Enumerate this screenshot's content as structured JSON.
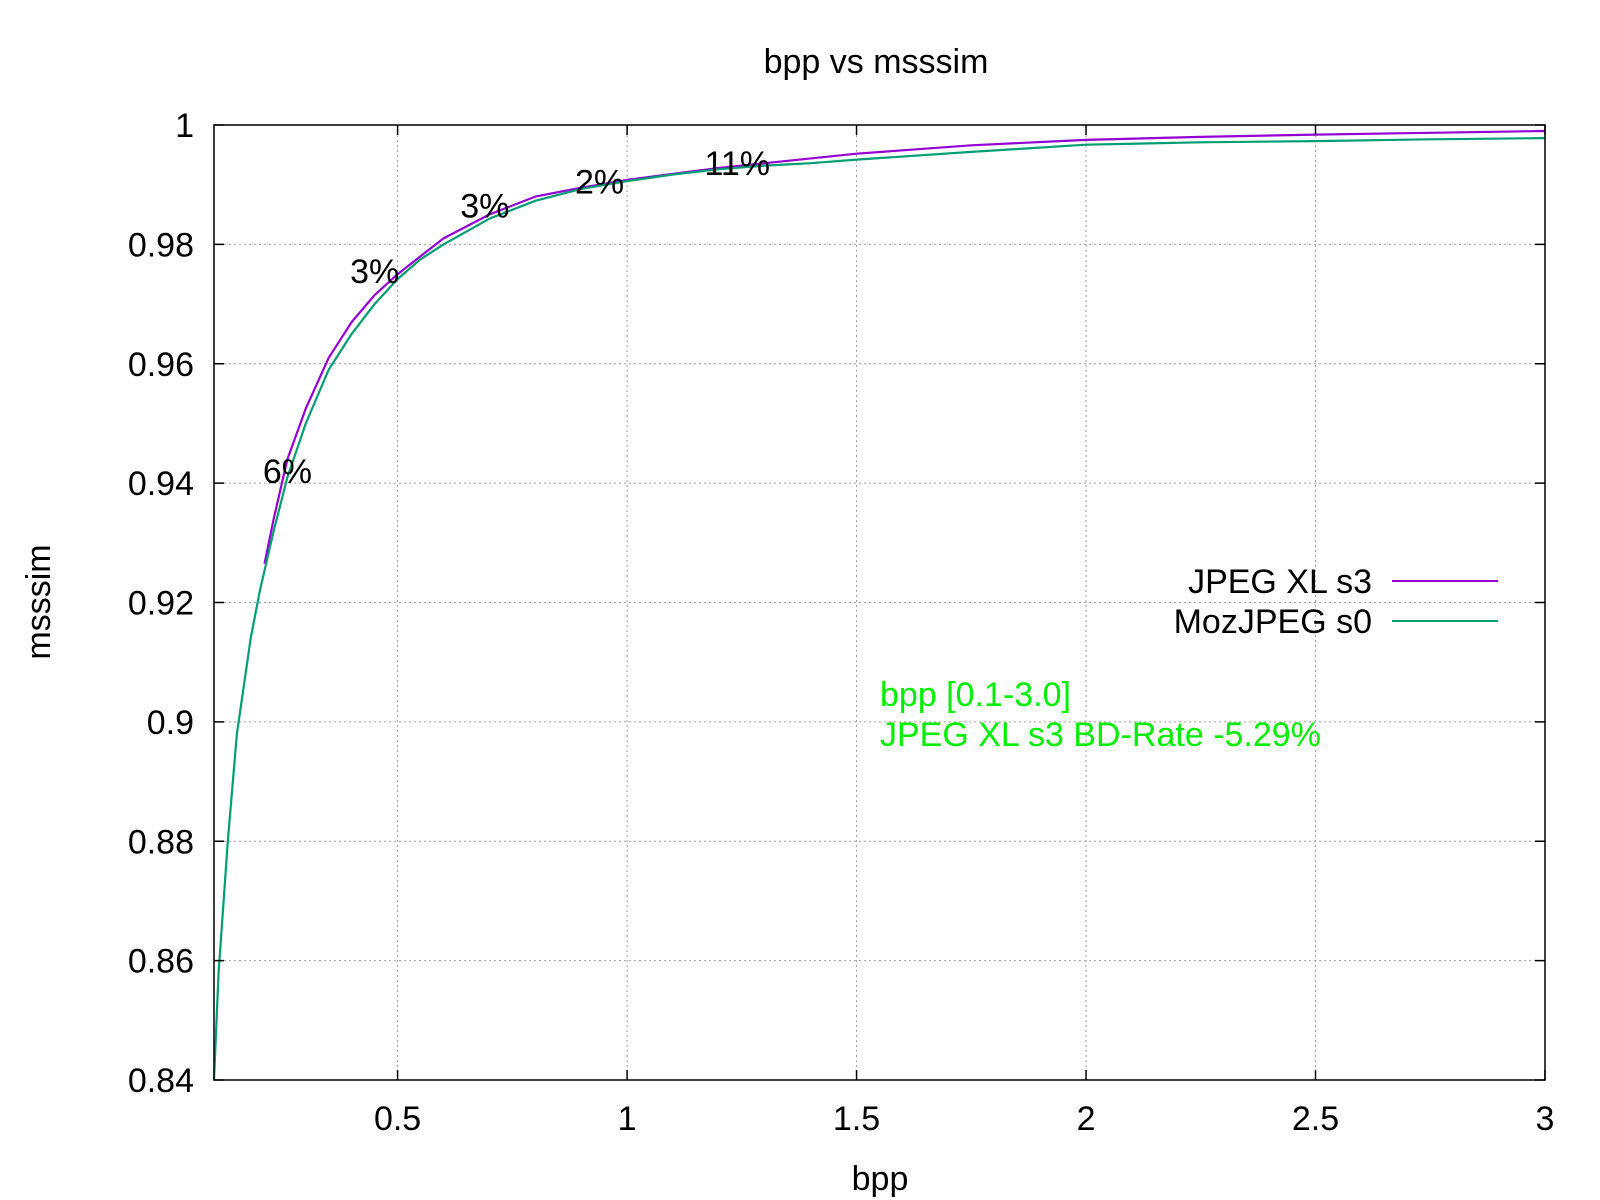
{
  "chart_data": {
    "type": "line",
    "title": "bpp vs msssim",
    "xlabel": "bpp",
    "ylabel": "msssim",
    "xlim": [
      0.1,
      3.0
    ],
    "ylim": [
      0.84,
      1.0
    ],
    "xticks": [
      0.5,
      1,
      1.5,
      2,
      2.5,
      3
    ],
    "xtick_labels": [
      "0.5",
      "1",
      "1.5",
      "2",
      "2.5",
      "3"
    ],
    "yticks": [
      0.84,
      0.86,
      0.88,
      0.9,
      0.92,
      0.94,
      0.96,
      0.98,
      1.0
    ],
    "ytick_labels": [
      "0.84",
      "0.86",
      "0.88",
      "0.9",
      "0.92",
      "0.94",
      "0.96",
      "0.98",
      "1"
    ],
    "grid": true,
    "legend_position": "right",
    "series": [
      {
        "name": "JPEG XL s3",
        "color": "#9400d3",
        "x": [
          0.21,
          0.23,
          0.26,
          0.3,
          0.35,
          0.4,
          0.45,
          0.5,
          0.55,
          0.6,
          0.7,
          0.8,
          0.9,
          1.0,
          1.1,
          1.2,
          1.3,
          1.5,
          1.75,
          2.0,
          2.25,
          2.5,
          2.75,
          3.0
        ],
        "y": [
          0.9265,
          0.934,
          0.944,
          0.9525,
          0.961,
          0.967,
          0.9715,
          0.975,
          0.978,
          0.981,
          0.985,
          0.988,
          0.9895,
          0.9908,
          0.9918,
          0.9928,
          0.9936,
          0.9952,
          0.9966,
          0.9975,
          0.998,
          0.9984,
          0.9987,
          0.999
        ]
      },
      {
        "name": "MozJPEG s0",
        "color": "#009e73",
        "x": [
          0.1,
          0.11,
          0.13,
          0.15,
          0.18,
          0.2,
          0.23,
          0.26,
          0.3,
          0.35,
          0.4,
          0.45,
          0.5,
          0.55,
          0.6,
          0.7,
          0.8,
          0.9,
          1.0,
          1.1,
          1.2,
          1.3,
          1.4,
          1.5,
          1.75,
          2.0,
          2.25,
          2.5,
          2.75,
          3.0
        ],
        "y": [
          0.84,
          0.858,
          0.88,
          0.898,
          0.914,
          0.922,
          0.932,
          0.941,
          0.95,
          0.959,
          0.965,
          0.97,
          0.9742,
          0.9775,
          0.98,
          0.9843,
          0.9873,
          0.9893,
          0.9906,
          0.9917,
          0.9926,
          0.9932,
          0.9936,
          0.9942,
          0.9955,
          0.9967,
          0.9971,
          0.9973,
          0.9976,
          0.9978
        ]
      }
    ],
    "annotations": [
      {
        "text": "6%",
        "x": 0.26,
        "y": 0.942
      },
      {
        "text": "3%",
        "x": 0.45,
        "y": 0.9755
      },
      {
        "text": "3%",
        "x": 0.69,
        "y": 0.9865
      },
      {
        "text": "2%",
        "x": 0.94,
        "y": 0.9905
      },
      {
        "text": "11%",
        "x": 1.24,
        "y": 0.9936
      }
    ],
    "note": {
      "lines": [
        "bpp [0.1-3.0]",
        "JPEG XL s3 BD-Rate -5.29%"
      ],
      "color": "#00ee00"
    }
  }
}
